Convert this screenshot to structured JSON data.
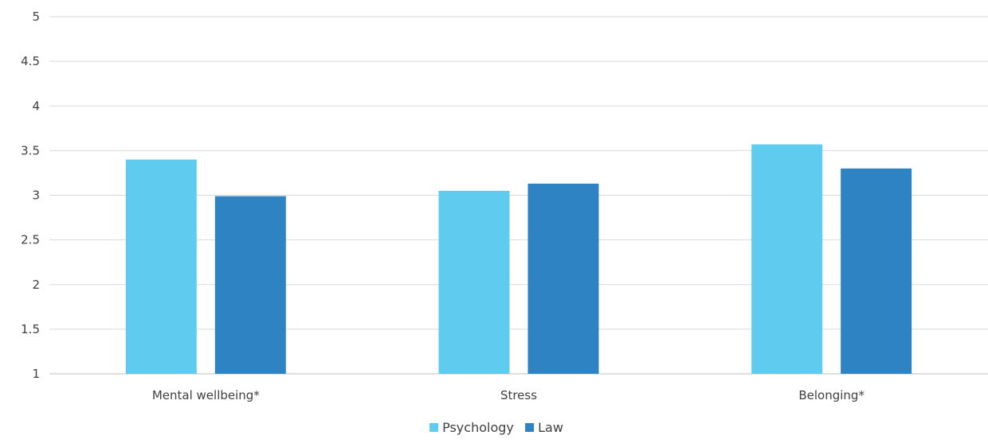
{
  "chart_data": {
    "type": "bar",
    "title": "",
    "xlabel": "",
    "ylabel": "",
    "categories": [
      "Mental wellbeing*",
      "Stress",
      "Belonging*"
    ],
    "series": [
      {
        "name": "Psychology",
        "color": "#5ecbef",
        "values": [
          3.4,
          3.05,
          3.57
        ]
      },
      {
        "name": "Law",
        "color": "#2e83c3",
        "values": [
          2.99,
          3.13,
          3.3
        ]
      }
    ],
    "ylim": [
      1,
      5
    ],
    "yticks": [
      "1",
      "1.5",
      "2",
      "2.5",
      "3",
      "3.5",
      "4",
      "4.5",
      "5"
    ],
    "grid": true,
    "legend": "bottom-center"
  }
}
